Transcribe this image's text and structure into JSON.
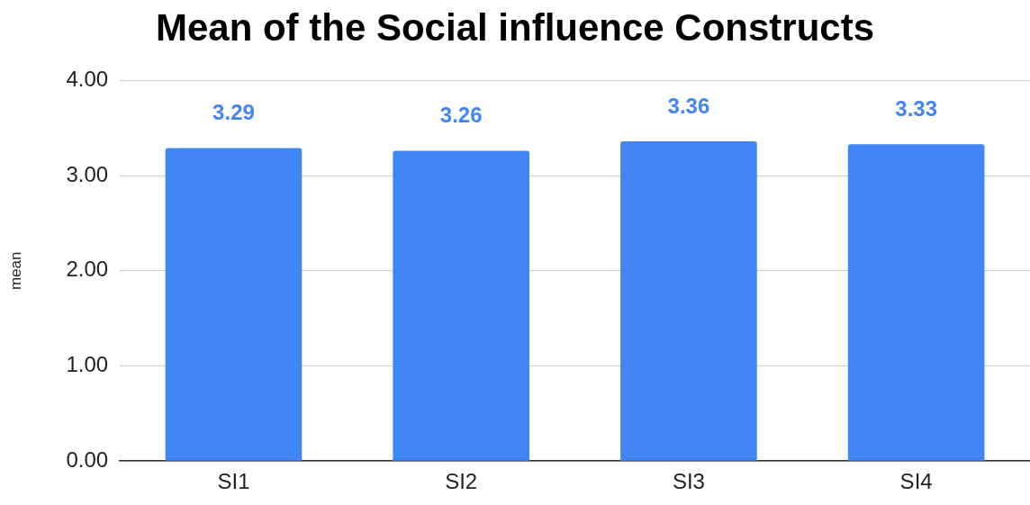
{
  "chart_data": {
    "type": "bar",
    "title": "Mean of the Social influence Constructs",
    "ylabel": "mean",
    "categories": [
      "SI1",
      "SI2",
      "SI3",
      "SI4"
    ],
    "values": [
      3.29,
      3.26,
      3.36,
      3.33
    ],
    "color": "#4285f4",
    "ylim": [
      0,
      4
    ],
    "yticks": [
      {
        "value": 0,
        "label": "0.00"
      },
      {
        "value": 1,
        "label": "1.00"
      },
      {
        "value": 2,
        "label": "2.00"
      },
      {
        "value": 3,
        "label": "3.00"
      },
      {
        "value": 4,
        "label": "4.00"
      }
    ],
    "grid": "y",
    "data_labels": true
  }
}
